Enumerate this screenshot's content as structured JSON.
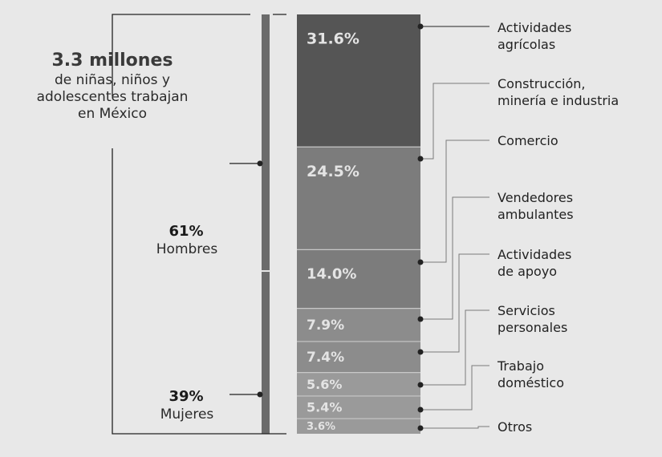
{
  "title": {
    "headline": "3.3 millones",
    "line1": "de niñas, niños y",
    "line2": "adolescentes trabajan",
    "line3": "en México"
  },
  "gender": {
    "men": {
      "pct": "61%",
      "label": "Hombres"
    },
    "women": {
      "pct": "39%",
      "label": "Mujeres"
    }
  },
  "colors": {
    "background": "#e8e8e8",
    "bar_dark": "#555555",
    "bar_mid": "#7c7c7c",
    "bar_light": "#8c8c8c",
    "bar_lighter": "#9a9a9a",
    "gender_bar": "#6b6b6b",
    "text_on_bar": "#e4e4e4",
    "leader_line": "#222222"
  },
  "chart_data": {
    "type": "bar",
    "stacked": true,
    "categories": [
      "Actividades agrícolas",
      "Construcción, minería e industria",
      "Comercio",
      "Vendedores ambulantes",
      "Actividades de apoyo",
      "Servicios personales",
      "Trabajo doméstico",
      "Otros"
    ],
    "label_lines": [
      [
        "Actividades",
        "agrícolas"
      ],
      [
        "Construcción,",
        "minería e industria"
      ],
      [
        "Comercio"
      ],
      [
        "Vendedores",
        "ambulantes"
      ],
      [
        "Actividades",
        "de apoyo"
      ],
      [
        "Servicios",
        "personales"
      ],
      [
        "Trabajo",
        "doméstico"
      ],
      [
        "Otros"
      ]
    ],
    "values": [
      31.6,
      24.5,
      14.0,
      7.9,
      7.4,
      5.6,
      5.4,
      3.6
    ],
    "value_labels": [
      "31.6%",
      "24.5%",
      "14.0%",
      "7.9%",
      "7.4%",
      "5.6%",
      "5.4%",
      "3.6%"
    ],
    "gender_split": {
      "Hombres": 61,
      "Mujeres": 39
    },
    "total": "3.3 millones"
  }
}
